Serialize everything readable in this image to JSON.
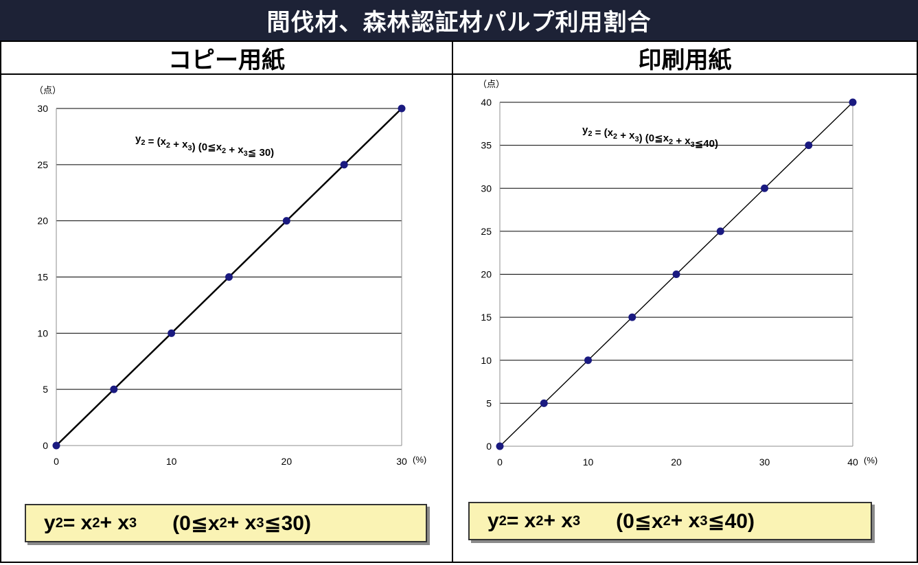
{
  "title": "間伐材、森林認証材パルプ利用割合",
  "chart_data": [
    {
      "type": "scatter",
      "title": "コピー用紙",
      "ylabel": "（点）",
      "xlabel": "(%)",
      "x": [
        0,
        5,
        10,
        15,
        20,
        25,
        30
      ],
      "y": [
        0,
        5,
        10,
        15,
        20,
        25,
        30
      ],
      "xlim": [
        0,
        30
      ],
      "ylim": [
        0,
        30
      ],
      "xticks": [
        0,
        10,
        20,
        30
      ],
      "yticks": [
        0,
        5,
        10,
        15,
        20,
        25,
        30
      ],
      "grid": "horizontal",
      "line": "connected",
      "marker_color": "#1a1a80",
      "annotation": "y2 = (x2 + x3)  (0≦x2 + x3≦ 30)",
      "formula": "y2 = x2 + x3  (0≦x2 + x3≦30)"
    },
    {
      "type": "scatter",
      "title": "印刷用紙",
      "ylabel": "（点）",
      "xlabel": "(%)",
      "x": [
        0,
        5,
        10,
        15,
        20,
        25,
        30,
        35,
        40
      ],
      "y": [
        0,
        5,
        10,
        15,
        20,
        25,
        30,
        35,
        40
      ],
      "xlim": [
        0,
        40
      ],
      "ylim": [
        0,
        40
      ],
      "xticks": [
        0,
        10,
        20,
        30,
        40
      ],
      "yticks": [
        0,
        5,
        10,
        15,
        20,
        25,
        30,
        35,
        40
      ],
      "grid": "horizontal",
      "line": "connected",
      "marker_color": "#1a1a80",
      "annotation": "y2 = (x2 + x3)  (0≦x2 + x3≦40)",
      "formula": "y2 = x2 + x3  (0≦x2 + x3≦40)"
    }
  ]
}
